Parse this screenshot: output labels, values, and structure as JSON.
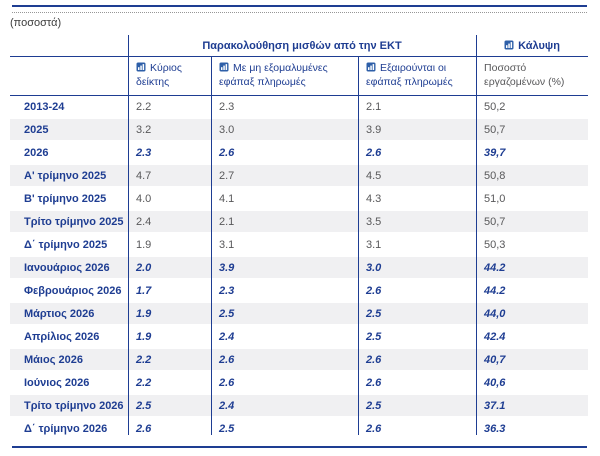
{
  "units_label": "(ποσοστά)",
  "table": {
    "group_header": "Παρακολούθηση μισθών από την ΕΚΤ",
    "coverage_header": "Κάλυψη",
    "columns": [
      {
        "label": "Κύριος δείκτης",
        "icon": "data-series-icon"
      },
      {
        "label": "Με μη εξομαλυμένες εφάπαξ πληρωμές",
        "icon": "data-series-icon"
      },
      {
        "label": "Εξαιρούνται οι εφάπαξ πληρωμές",
        "icon": "data-series-icon"
      },
      {
        "label": "Ποσοστό εργαζομένων (%)",
        "icon": null
      }
    ],
    "rows": [
      {
        "label": "2013-24",
        "values": [
          "2.2",
          "2.3",
          "2.1",
          "50,2"
        ],
        "forecast": false
      },
      {
        "label": "2025",
        "values": [
          "3.2",
          "3.0",
          "3.9",
          "50,7"
        ],
        "forecast": false
      },
      {
        "label": "2026",
        "values": [
          "2.3",
          "2.6",
          "2.6",
          "39,7"
        ],
        "forecast": true
      },
      {
        "label": "Α' τρίμηνο 2025",
        "values": [
          "4.7",
          "2.7",
          "4.5",
          "50,8"
        ],
        "forecast": false
      },
      {
        "label": "Β' τρίμηνο 2025",
        "values": [
          "4.0",
          "4.1",
          "4.3",
          "51,0"
        ],
        "forecast": false
      },
      {
        "label": "Τρίτο τρίμηνο 2025",
        "values": [
          "2.4",
          "2.1",
          "3.5",
          "50,7"
        ],
        "forecast": false
      },
      {
        "label": "Δ΄ τρίμηνο 2025",
        "values": [
          "1.9",
          "3.1",
          "3.1",
          "50,3"
        ],
        "forecast": false
      },
      {
        "label": "Ιανουάριος 2026",
        "values": [
          "2.0",
          "3.9",
          "3.0",
          "44.2"
        ],
        "forecast": true
      },
      {
        "label": "Φεβρουάριος 2026",
        "values": [
          "1.7",
          "2.3",
          "2.6",
          "44.2"
        ],
        "forecast": true
      },
      {
        "label": "Μάρτιος 2026",
        "values": [
          "1.9",
          "2.5",
          "2.5",
          "44,0"
        ],
        "forecast": true
      },
      {
        "label": "Απρίλιος 2026",
        "values": [
          "1.9",
          "2.4",
          "2.5",
          "42.4"
        ],
        "forecast": true
      },
      {
        "label": "Μάιος 2026",
        "values": [
          "2.2",
          "2.6",
          "2.6",
          "40,7"
        ],
        "forecast": true
      },
      {
        "label": "Ιούνιος 2026",
        "values": [
          "2.2",
          "2.6",
          "2.6",
          "40,6"
        ],
        "forecast": true
      },
      {
        "label": "Τρίτο τρίμηνο 2026",
        "values": [
          "2.5",
          "2.4",
          "2.5",
          "37.1"
        ],
        "forecast": true
      },
      {
        "label": "Δ΄ τρίμηνο 2026",
        "values": [
          "2.6",
          "2.5",
          "2.6",
          "36.3"
        ],
        "forecast": true
      }
    ]
  },
  "colors": {
    "navy": "#1e3d92",
    "value_gray": "#58585a",
    "stripe": "#f0f0f2",
    "icon_blue": "#2e5fa8"
  }
}
